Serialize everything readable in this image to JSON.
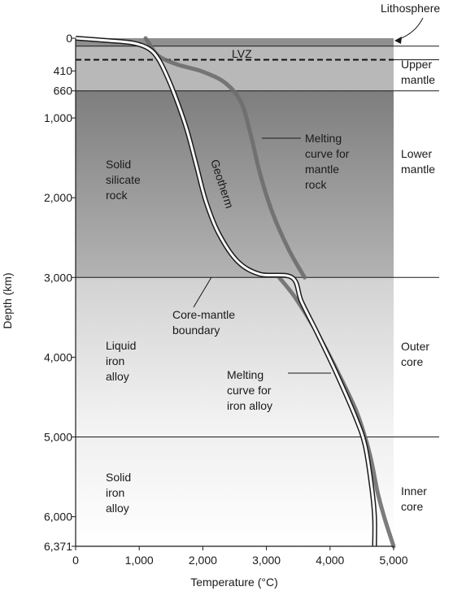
{
  "chart_data": {
    "type": "line",
    "xlabel": "Temperature (°C)",
    "ylabel": "Depth (km)",
    "xlim": [
      0,
      5000
    ],
    "ylim": [
      6371,
      0
    ],
    "x_ticks": [
      "0",
      "1,000",
      "2,000",
      "3,000",
      "4,000",
      "5,000"
    ],
    "y_ticks": [
      {
        "value": 0,
        "label": "0"
      },
      {
        "value": 410,
        "label": "410"
      },
      {
        "value": 660,
        "label": "660"
      },
      {
        "value": 1000,
        "label": "1,000"
      },
      {
        "value": 2000,
        "label": "2,000"
      },
      {
        "value": 3000,
        "label": "3,000"
      },
      {
        "value": 4000,
        "label": "4,000"
      },
      {
        "value": 5000,
        "label": "5,000"
      },
      {
        "value": 6000,
        "label": "6,000"
      },
      {
        "value": 6371,
        "label": "6,371"
      }
    ],
    "layers": [
      {
        "name": "Lithosphere",
        "top": 0,
        "bottom": 100,
        "color": "#8f8f8f"
      },
      {
        "name": "Upper mantle",
        "top": 100,
        "bottom": 660,
        "color": "#b8b8b8"
      },
      {
        "name": "Lower mantle",
        "top": 660,
        "bottom": 3000,
        "color_top": "#7e7e7e",
        "color_bottom": "#b3b3b3"
      },
      {
        "name": "Outer core",
        "top": 3000,
        "bottom": 5000,
        "color_top": "#d2d2d2",
        "color_bottom": "#f5f5f5"
      },
      {
        "name": "Inner core",
        "top": 5000,
        "bottom": 6371,
        "color_top": "#f0f0f0",
        "color_bottom": "#ffffff"
      }
    ],
    "boundaries": [
      100,
      660,
      3000,
      5000
    ],
    "lvz_depth": 270,
    "series": [
      {
        "name": "Geotherm",
        "style": "double-line",
        "points": [
          [
            0,
            0
          ],
          [
            500,
            30
          ],
          [
            900,
            60
          ],
          [
            1150,
            130
          ],
          [
            1300,
            260
          ],
          [
            1450,
            500
          ],
          [
            1600,
            800
          ],
          [
            1750,
            1150
          ],
          [
            1900,
            1600
          ],
          [
            2050,
            2050
          ],
          [
            2250,
            2450
          ],
          [
            2550,
            2800
          ],
          [
            2900,
            2960
          ],
          [
            3400,
            3000
          ],
          [
            3550,
            3300
          ],
          [
            3800,
            3700
          ],
          [
            4100,
            4200
          ],
          [
            4400,
            4750
          ],
          [
            4550,
            5100
          ],
          [
            4650,
            5600
          ],
          [
            4700,
            6000
          ],
          [
            4700,
            6371
          ]
        ]
      },
      {
        "name": "Melting curve for mantle rock",
        "style": "grey-band",
        "points": [
          [
            1100,
            0
          ],
          [
            1150,
            60
          ],
          [
            1300,
            220
          ],
          [
            1600,
            330
          ],
          [
            2000,
            420
          ],
          [
            2350,
            560
          ],
          [
            2600,
            800
          ],
          [
            2750,
            1200
          ],
          [
            2900,
            1700
          ],
          [
            3100,
            2200
          ],
          [
            3350,
            2650
          ],
          [
            3600,
            3000
          ]
        ]
      },
      {
        "name": "Melting curve for iron alloy",
        "style": "grey-band",
        "points": [
          [
            3200,
            3000
          ],
          [
            3450,
            3250
          ],
          [
            3800,
            3700
          ],
          [
            4100,
            4150
          ],
          [
            4400,
            4650
          ],
          [
            4550,
            5000
          ],
          [
            4650,
            5300
          ],
          [
            4750,
            5700
          ],
          [
            4850,
            6000
          ],
          [
            5000,
            6371
          ]
        ]
      }
    ]
  },
  "labels": {
    "lithosphere": "Lithosphere",
    "lvz": "LVZ",
    "upper_mantle": [
      "Upper",
      "mantle"
    ],
    "lower_mantle": [
      "Lower",
      "mantle"
    ],
    "outer_core": [
      "Outer",
      "core"
    ],
    "inner_core": [
      "Inner",
      "core"
    ],
    "solid_silicate": [
      "Solid",
      "silicate",
      "rock"
    ],
    "liquid_iron": [
      "Liquid",
      "iron",
      "alloy"
    ],
    "solid_iron": [
      "Solid",
      "iron",
      "alloy"
    ],
    "geotherm": "Geotherm",
    "melting_mantle": [
      "Melting",
      "curve for",
      "mantle",
      "rock"
    ],
    "core_mantle_boundary": [
      "Core-mantle",
      "boundary"
    ],
    "melting_iron": [
      "Melting",
      "curve for",
      "iron alloy"
    ]
  }
}
